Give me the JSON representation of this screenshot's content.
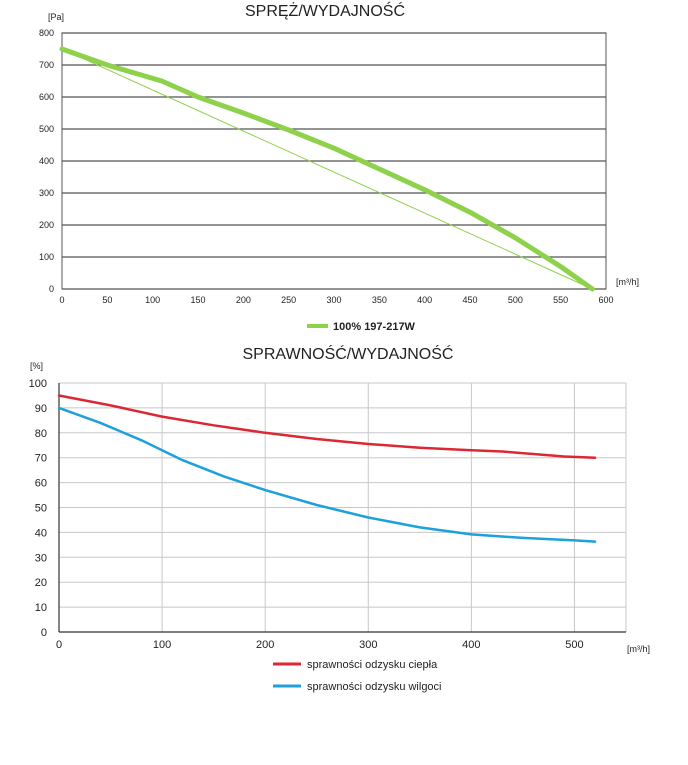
{
  "chart_data": [
    {
      "type": "line",
      "title": "SPRĘŻ/WYDAJNOŚĆ",
      "ylabel": "[Pa]",
      "xlabel": "[m³/h]",
      "xlim": [
        0,
        600
      ],
      "ylim": [
        0,
        800
      ],
      "x_ticks": [
        "0",
        "50",
        "100",
        "150",
        "200",
        "250",
        "300",
        "350",
        "400",
        "450",
        "500",
        "550",
        "600"
      ],
      "y_ticks": [
        "0",
        "100",
        "200",
        "300",
        "400",
        "500",
        "600",
        "700",
        "800"
      ],
      "grid": "horizontal",
      "legend_placement": "bottom-center",
      "series": [
        {
          "name": "100% 197-217W",
          "color": "#8ed14a",
          "x": [
            0,
            50,
            110,
            150,
            200,
            250,
            300,
            350,
            400,
            450,
            500,
            550,
            585
          ],
          "y": [
            750,
            700,
            650,
            600,
            550,
            497,
            440,
            375,
            310,
            240,
            160,
            70,
            0
          ]
        },
        {
          "color": "#8ed14a",
          "x": [
            0,
            585
          ],
          "y": [
            750,
            0
          ]
        }
      ]
    },
    {
      "type": "line",
      "title": "SPRAWNOŚĆ/WYDAJNOŚĆ",
      "ylabel": "[%]",
      "xlabel": "[m³/h]",
      "xlim": [
        0,
        550
      ],
      "ylim": [
        0,
        100
      ],
      "x_ticks": [
        "0",
        "100",
        "200",
        "300",
        "400",
        "500"
      ],
      "y_ticks": [
        "0",
        "10",
        "20",
        "30",
        "40",
        "50",
        "60",
        "70",
        "80",
        "90",
        "100"
      ],
      "grid": "both",
      "legend_placement": "bottom-center",
      "series": [
        {
          "name": "sprawności odzysku ciepła",
          "color": "#dc2834",
          "x": [
            0,
            50,
            100,
            150,
            200,
            250,
            300,
            350,
            400,
            430,
            460,
            490,
            520
          ],
          "y": [
            95,
            91,
            86.5,
            83,
            80,
            77.5,
            75.5,
            74,
            73,
            72.5,
            71.5,
            70.5,
            70
          ]
        },
        {
          "name": "sprawności odzysku wilgoci",
          "color": "#1ea0dc",
          "x": [
            0,
            40,
            80,
            120,
            160,
            200,
            250,
            300,
            350,
            400,
            450,
            500,
            520
          ],
          "y": [
            90,
            84,
            77,
            69,
            62.5,
            57,
            51,
            46,
            42,
            39.2,
            37.8,
            36.8,
            36.3
          ]
        }
      ]
    }
  ]
}
